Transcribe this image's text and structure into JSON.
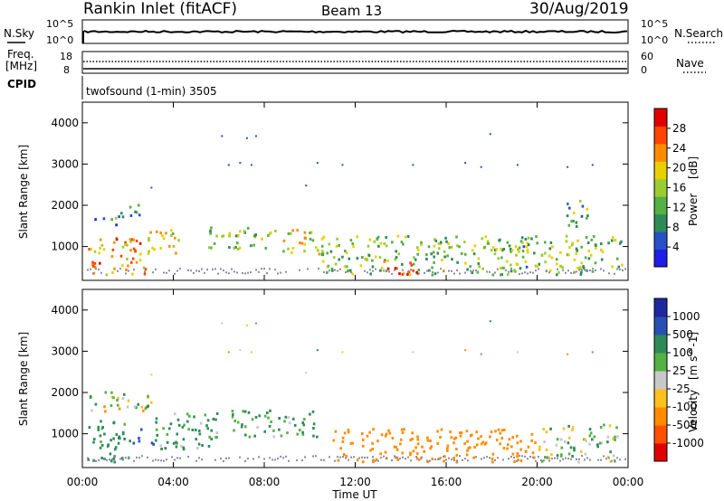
{
  "header": {
    "station": "Rankin Inlet (fitACF)",
    "beam": "Beam 13",
    "date": "30/Aug/2019"
  },
  "noise_panel": {
    "left_label": "N.Sky",
    "right_label": "N.Search",
    "left_ticks": [
      "10^5",
      "10^0"
    ],
    "right_ticks": [
      "10^5",
      "10^0"
    ]
  },
  "freq_panel": {
    "left_label_1": "Freq.",
    "left_label_2": "[MHz]",
    "right_label": "Nave",
    "left_ticks": [
      "18",
      "8"
    ],
    "right_ticks": [
      "60",
      "0"
    ]
  },
  "cpid_panel": {
    "label": "CPID",
    "text": "twofsound (1-min) 3505"
  },
  "axes": {
    "ylabel": "Slant Range [km]",
    "xlabel": "Time UT",
    "yticks": [
      "1000",
      "2000",
      "3000",
      "4000"
    ],
    "xticks": [
      "00:00",
      "04:00",
      "08:00",
      "12:00",
      "16:00",
      "20:00",
      "00:00"
    ]
  },
  "colors": {
    "power": [
      "#1e1ee6",
      "#2850c8",
      "#2e8b57",
      "#55b045",
      "#9acd32",
      "#e8d000",
      "#ff8c00",
      "#ff4500",
      "#e00000"
    ],
    "velocity": [
      "#e00000",
      "#ff5000",
      "#ff8c00",
      "#ffc020",
      "#c8c8c8",
      "#55b045",
      "#2e8b57",
      "#2850b4",
      "#1e28a0"
    ],
    "ground": "#8a8aa0"
  },
  "chart_data": [
    {
      "type": "heatmap",
      "title": "Power",
      "units": "[dB]",
      "colorbar_ticks": [
        "4",
        "8",
        "12",
        "16",
        "20",
        "24",
        "28"
      ],
      "colorbar_range": [
        0,
        32
      ],
      "x_range_hours": [
        0,
        24
      ],
      "y_range_km": [
        180,
        4500
      ],
      "regions": [
        {
          "t0": 0.2,
          "t1": 2.8,
          "r0": 300,
          "r1": 1200,
          "value": 22
        },
        {
          "t0": 0.3,
          "t1": 1.5,
          "r0": 1500,
          "r1": 1700,
          "value": 8
        },
        {
          "t0": 1.5,
          "t1": 2.7,
          "r0": 1700,
          "r1": 2000,
          "value": 10
        },
        {
          "t0": 2.5,
          "t1": 4.3,
          "r0": 800,
          "r1": 1400,
          "value": 18
        },
        {
          "t0": 5.5,
          "t1": 8.5,
          "r0": 900,
          "r1": 1450,
          "value": 14
        },
        {
          "t0": 8.8,
          "t1": 10.5,
          "r0": 800,
          "r1": 1400,
          "value": 18
        },
        {
          "t0": 10.5,
          "t1": 23.8,
          "r0": 300,
          "r1": 1250,
          "value": 14
        },
        {
          "t0": 13.2,
          "t1": 14.8,
          "r0": 250,
          "r1": 650,
          "value": 27
        },
        {
          "t0": 21.2,
          "t1": 22.2,
          "r0": 1400,
          "r1": 2100,
          "value": 12
        }
      ]
    },
    {
      "type": "heatmap",
      "title": "Velocity",
      "units": "[m s^-1]",
      "colorbar_ticks": [
        "1000",
        "500",
        "100",
        "25",
        "-25",
        "-100",
        "-500",
        "-1000"
      ],
      "x_range_hours": [
        0,
        24
      ],
      "y_range_km": [
        180,
        4500
      ],
      "regions": [
        {
          "t0": 0.2,
          "t1": 2.0,
          "r0": 300,
          "r1": 1300,
          "value": 200
        },
        {
          "t0": 2.0,
          "t1": 3.2,
          "r0": 700,
          "r1": 1100,
          "value": 600
        },
        {
          "t0": 3.2,
          "t1": 6.0,
          "r0": 600,
          "r1": 1500,
          "value": 150
        },
        {
          "t0": 6.5,
          "t1": 10.3,
          "r0": 900,
          "r1": 1550,
          "value": 150
        },
        {
          "t0": 11.0,
          "t1": 20.0,
          "r0": 300,
          "r1": 1100,
          "value": -250
        },
        {
          "t0": 20.0,
          "t1": 23.5,
          "r0": 300,
          "r1": 1200,
          "value": 50
        },
        {
          "t0": 0.3,
          "t1": 3.0,
          "r0": 1500,
          "r1": 2000,
          "value": 0
        }
      ]
    }
  ]
}
